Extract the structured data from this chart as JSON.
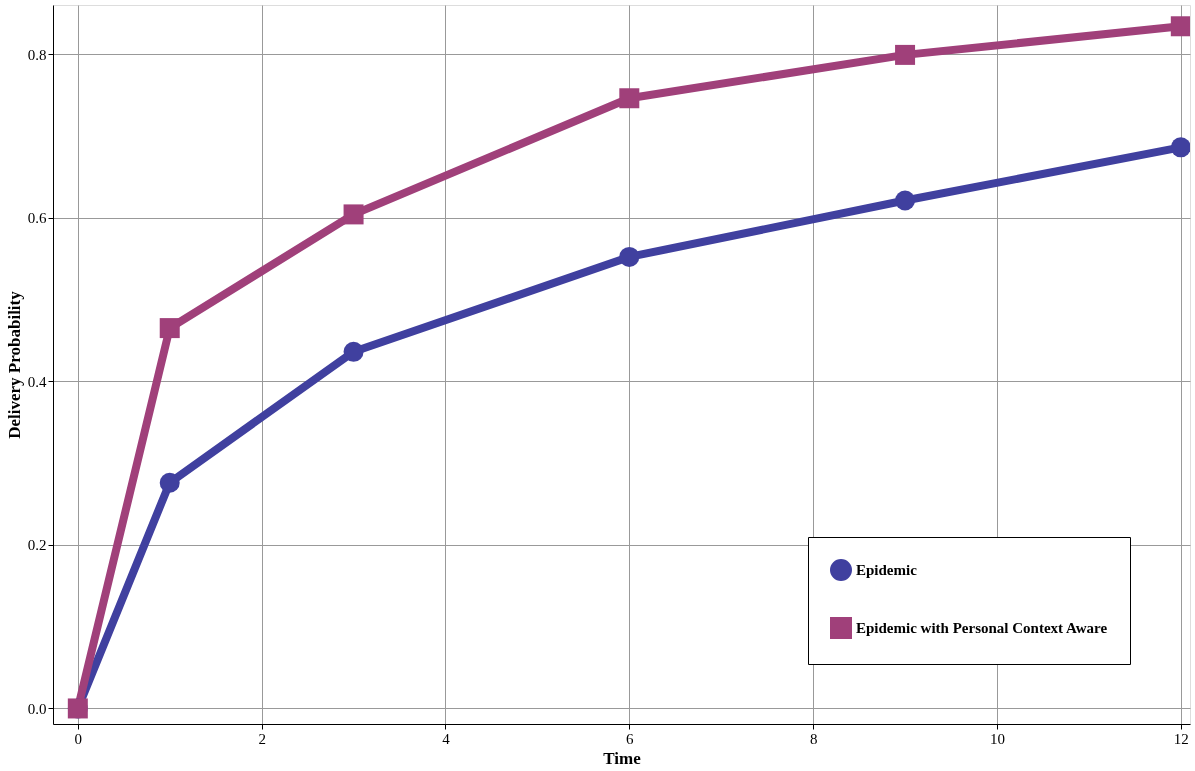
{
  "chart_data": {
    "type": "line",
    "xlabel": "Time",
    "ylabel": "Delivery Probability",
    "x": [
      0,
      1,
      3,
      6,
      9,
      12
    ],
    "series": [
      {
        "name": "Epidemic",
        "color": "#40409f",
        "marker": "circle",
        "values": [
          0.0,
          0.276,
          0.436,
          0.552,
          0.621,
          0.686
        ]
      },
      {
        "name": "Epidemic with Personal Context Aware",
        "color": "#a0407a",
        "marker": "square",
        "values": [
          0.0,
          0.465,
          0.604,
          0.746,
          0.799,
          0.834
        ]
      }
    ],
    "xlim": [
      -0.27,
      12.1
    ],
    "ylim": [
      -0.019,
      0.86
    ],
    "xticks": [
      0,
      2,
      4,
      6,
      8,
      10,
      12
    ],
    "yticks": [
      {
        "value": 0,
        "label": "0.0"
      },
      {
        "value": 0.2,
        "label": "0.2"
      },
      {
        "value": 0.4,
        "label": "0.4"
      },
      {
        "value": 0.6,
        "label": "0.6"
      },
      {
        "value": 0.8,
        "label": "0.8"
      }
    ],
    "grid": true,
    "legend": "bottom right",
    "line_style": "solid"
  }
}
